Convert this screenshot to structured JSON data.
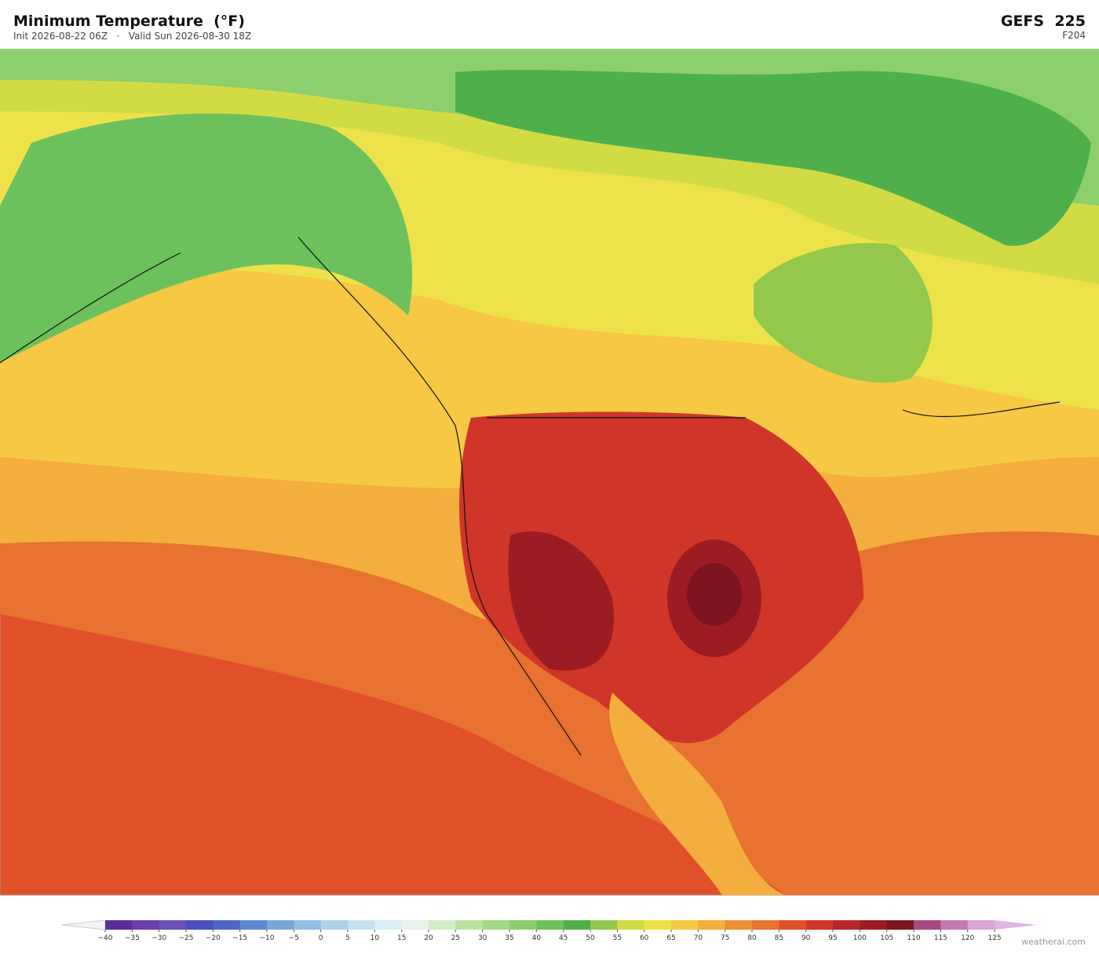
{
  "header": {
    "title": "Minimum Temperature  (°F)",
    "subtitle": "Init 2026-08-22 06Z   ·   Valid Sun 2026-08-30 18Z",
    "model": "GEFS  225",
    "forecast_hour": "F204"
  },
  "colorbar": {
    "ticks": [
      {
        "value": -40,
        "label": "−40"
      },
      {
        "value": -35,
        "label": "−35"
      },
      {
        "value": -30,
        "label": "−30"
      },
      {
        "value": -25,
        "label": "−25"
      },
      {
        "value": -20,
        "label": "−20"
      },
      {
        "value": -15,
        "label": "−15"
      },
      {
        "value": -10,
        "label": "−10"
      },
      {
        "value": -5,
        "label": "−5"
      },
      0,
      5,
      10,
      15,
      20,
      25,
      30,
      35,
      40,
      45,
      50,
      55,
      60,
      65,
      70,
      75,
      80,
      85,
      90,
      95,
      100,
      105,
      110,
      115,
      120,
      125
    ],
    "colors": [
      "#5b2d9a",
      "#6a3fa8",
      "#6e4fb8",
      "#4b4fc0",
      "#4f66c8",
      "#5f86d0",
      "#7aa5d8",
      "#93bde3",
      "#aed2ea",
      "#c5e1ef",
      "#daeef5",
      "#e6f4ea",
      "#d2ecc8",
      "#bde3a3",
      "#a3d985",
      "#8ccf6c",
      "#6cc15c",
      "#4fb04b",
      "#93c84d",
      "#d1dc44",
      "#ede24a",
      "#f6c843",
      "#f3ae3e",
      "#ee8f36",
      "#e8722f",
      "#e0512a",
      "#cf3529",
      "#b8252a",
      "#9c1c24",
      "#7c1420",
      "#a64a80",
      "#c27aae",
      "#d9a5d2"
    ],
    "under_color": "#f4f4f4",
    "over_color": "#e0b5e0"
  },
  "credit": "weatherai.com"
}
